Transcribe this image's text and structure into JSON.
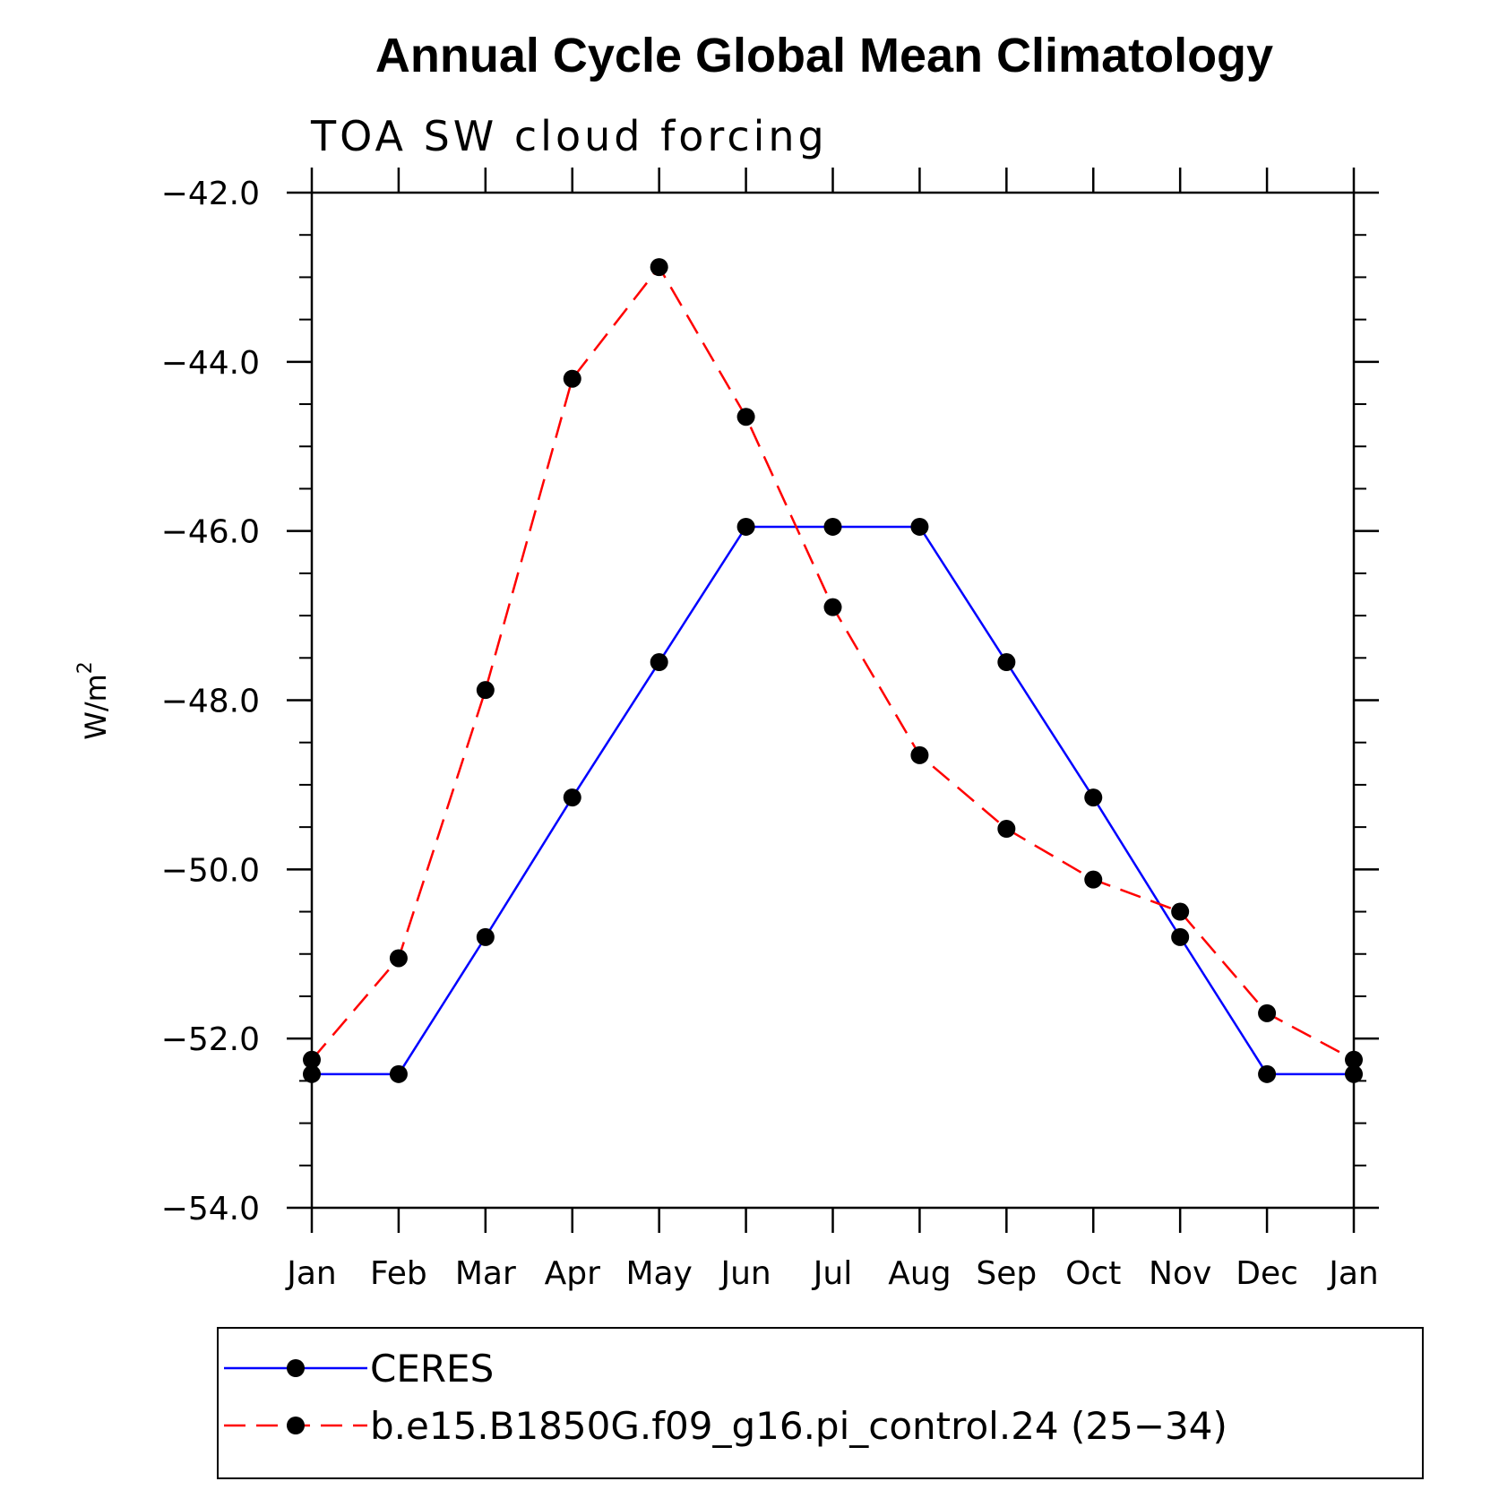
{
  "chart_data": {
    "type": "line",
    "title": "Annual Cycle Global Mean Climatology",
    "subtitle": "TOA SW cloud forcing",
    "xlabel": "",
    "ylabel": "W/m",
    "ylabel_superscript": "2",
    "categories": [
      "Jan",
      "Feb",
      "Mar",
      "Apr",
      "May",
      "Jun",
      "Jul",
      "Aug",
      "Sep",
      "Oct",
      "Nov",
      "Dec",
      "Jan"
    ],
    "ylim": [
      -54.0,
      -42.0
    ],
    "yticks": [
      "-42.0",
      "-44.0",
      "-46.0",
      "-48.0",
      "-50.0",
      "-52.0",
      "-54.0"
    ],
    "ytick_values": [
      -42,
      -44,
      -46,
      -48,
      -50,
      -52,
      -54
    ],
    "grid": false,
    "legend_position": "bottom",
    "series": [
      {
        "name": "CERES",
        "color": "#0000ff",
        "dash": "solid",
        "values": [
          -52.42,
          -52.42,
          -50.8,
          -49.15,
          -47.55,
          -45.95,
          -45.95,
          -45.95,
          -47.55,
          -49.15,
          -50.8,
          -52.42,
          -52.42
        ]
      },
      {
        "name": "b.e15.B1850G.f09_g16.pi_control.24 (25-34)",
        "color": "#ff0000",
        "dash": "dashed",
        "values": [
          -52.25,
          -51.05,
          -47.88,
          -44.2,
          -42.88,
          -44.65,
          -46.9,
          -48.65,
          -49.52,
          -50.12,
          -50.5,
          -51.7,
          -52.25
        ]
      }
    ]
  }
}
